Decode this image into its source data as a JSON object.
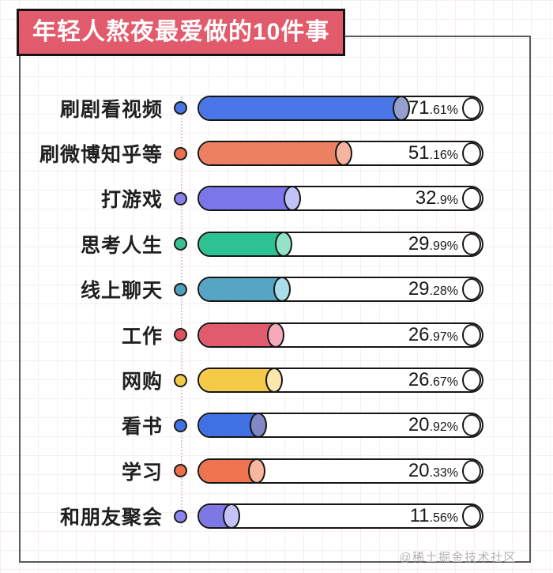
{
  "title": "年轻人熬夜最爱做的10件事",
  "watermark": "@稀土掘金技术社区",
  "colors": {
    "banner_bg": "#e25b6c",
    "banner_border": "#141414",
    "banner_text": "#ffffff",
    "frame_border": "#5a5a5a",
    "grid_line": "#f8eeee",
    "track_border": "#161616",
    "track_bg": "#ffffff",
    "value_text": "#171717",
    "label_text": "#1f1f1f",
    "watermark_text": "#b3b3b3"
  },
  "chart_data": {
    "type": "bar",
    "orientation": "horizontal",
    "title": "年轻人熬夜最爱做的10件事",
    "value_unit": "%",
    "xlim": [
      0,
      100
    ],
    "grid": true,
    "categories": [
      "刷剧看视频",
      "刷微博知乎等",
      "打游戏",
      "思考人生",
      "线上聊天",
      "工作",
      "网购",
      "看书",
      "学习",
      "和朋友聚会"
    ],
    "values": [
      71.61,
      51.16,
      32.9,
      29.99,
      29.28,
      26.97,
      26.67,
      20.92,
      20.33,
      11.56
    ],
    "items": [
      {
        "label": "刷剧看视频",
        "value": 71.61,
        "value_label": "71.61%",
        "value_int": "71",
        "value_frac": ".61%",
        "color": "#4a76e8",
        "cap_color": "#95a0cf",
        "bullet_color": "#4a74e4"
      },
      {
        "label": "刷微博知乎等",
        "value": 51.16,
        "value_label": "51.16%",
        "value_int": "51",
        "value_frac": ".16%",
        "color": "#ec8060",
        "cap_color": "#f6b5a0",
        "bullet_color": "#ea6f4e"
      },
      {
        "label": "打游戏",
        "value": 32.9,
        "value_label": "32.9%",
        "value_int": "32",
        "value_frac": ".9%",
        "color": "#7b76e9",
        "cap_color": "#c3c2f7",
        "bullet_color": "#8a80ec"
      },
      {
        "label": "思考人生",
        "value": 29.99,
        "value_label": "29.99%",
        "value_int": "29",
        "value_frac": ".99%",
        "color": "#2dc291",
        "cap_color": "#93e3c6",
        "bullet_color": "#3bbf92"
      },
      {
        "label": "线上聊天",
        "value": 29.28,
        "value_label": "29.28%",
        "value_int": "29",
        "value_frac": ".28%",
        "color": "#57a5c5",
        "cap_color": "#abdcec",
        "bullet_color": "#4f9fbd"
      },
      {
        "label": "工作",
        "value": 26.97,
        "value_label": "26.97%",
        "value_int": "26",
        "value_frac": ".97%",
        "color": "#e25b6d",
        "cap_color": "#f4aab8",
        "bullet_color": "#df4f5e"
      },
      {
        "label": "网购",
        "value": 26.67,
        "value_label": "26.67%",
        "value_int": "26",
        "value_frac": ".67%",
        "color": "#f6ca49",
        "cap_color": "#fbe6ab",
        "bullet_color": "#f2ca4b"
      },
      {
        "label": "看书",
        "value": 20.92,
        "value_label": "20.92%",
        "value_int": "20",
        "value_frac": ".92%",
        "color": "#3f70e4",
        "cap_color": "#8089c5",
        "bullet_color": "#3f70e4"
      },
      {
        "label": "学习",
        "value": 20.33,
        "value_label": "20.33%",
        "value_int": "20",
        "value_frac": ".33%",
        "color": "#ee7450",
        "cap_color": "#f7b69e",
        "bullet_color": "#ec6f4b"
      },
      {
        "label": "和朋友聚会",
        "value": 11.56,
        "value_label": "11.56%",
        "value_int": "11",
        "value_frac": ".56%",
        "color": "#7d78e6",
        "cap_color": "#c3c3f8",
        "bullet_color": "#8a85ec"
      }
    ]
  }
}
